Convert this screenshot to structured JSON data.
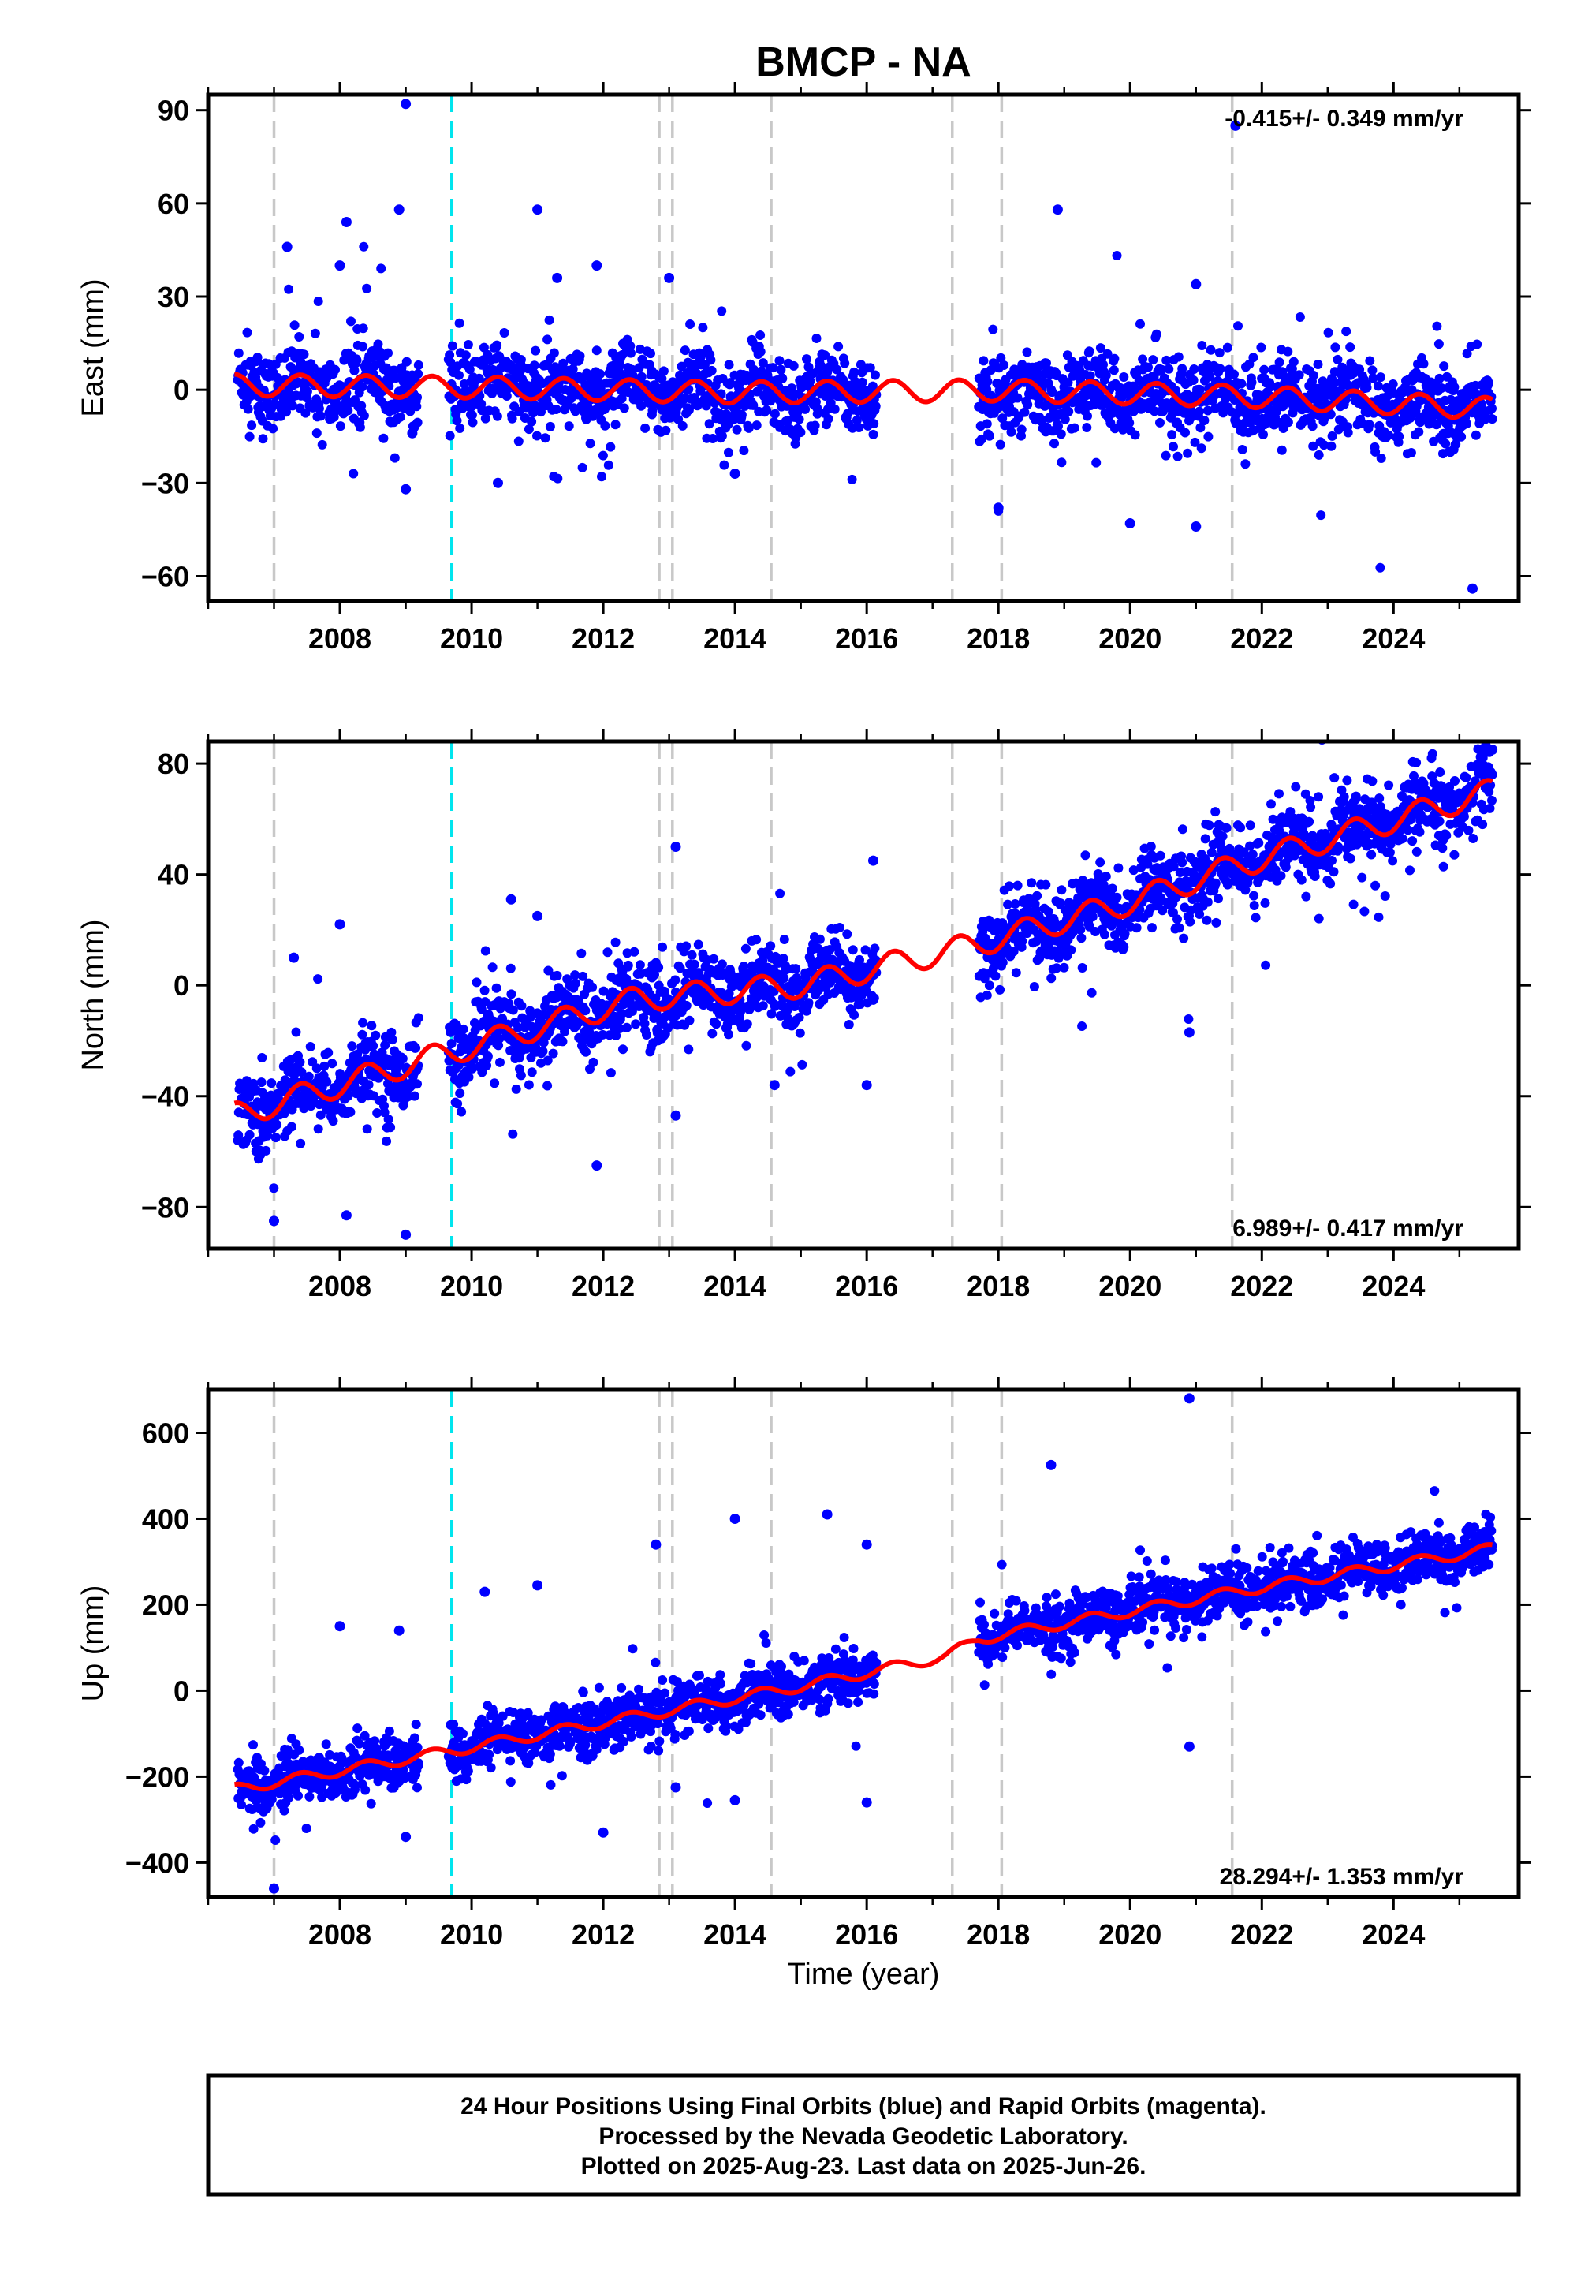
{
  "title": "BMCP - NA",
  "xlabel": "Time (year)",
  "caption": {
    "line1": "24 Hour Positions Using Final Orbits (blue) and Rapid Orbits (magenta).",
    "line2": "Processed by the Nevada Geodetic Laboratory.",
    "line3": "Plotted on 2025-Aug-23. Last data on 2025-Jun-26."
  },
  "colors": {
    "final_orbits": "#0000ff",
    "model": "#ff0000",
    "equipment_change": "#c8c8c8",
    "earthquake": "#00e5ee",
    "frame": "#000000"
  },
  "chart_data": [
    {
      "type": "scatter",
      "name": "east",
      "ylabel": "East (mm)",
      "rate": "-0.415+/- 0.349 mm/yr",
      "rate_position": "top-right",
      "xlim": [
        2006.0,
        2025.9
      ],
      "ylim": [
        -68,
        95
      ],
      "x_ticks": [
        2008,
        2010,
        2012,
        2014,
        2016,
        2018,
        2020,
        2022,
        2024
      ],
      "y_ticks": [
        -60,
        -30,
        0,
        30,
        60,
        90
      ],
      "grid": false,
      "trend": [
        [
          2006.4,
          1.5
        ],
        [
          2010.0,
          0.8
        ],
        [
          2014.0,
          -0.9
        ],
        [
          2018.0,
          -0.2
        ],
        [
          2021.6,
          -2.0
        ],
        [
          2025.5,
          -6.0
        ]
      ],
      "seasonal_amplitude": 3.5,
      "scatter_sd": 4.5,
      "data_spans": [
        [
          2006.45,
          2009.2
        ],
        [
          2009.65,
          2016.15
        ],
        [
          2017.7,
          2025.5
        ]
      ],
      "outliers": [
        [
          2009.0,
          92
        ],
        [
          2008.9,
          58
        ],
        [
          2018.9,
          58
        ],
        [
          2011.0,
          58
        ],
        [
          2007.2,
          46
        ],
        [
          2021.6,
          85
        ],
        [
          2008.1,
          54
        ],
        [
          2021.0,
          34
        ],
        [
          2008.0,
          40
        ],
        [
          2011.9,
          40
        ],
        [
          2009.1,
          -14
        ],
        [
          2009.0,
          -32
        ],
        [
          2018.0,
          -38
        ],
        [
          2020.0,
          -43
        ],
        [
          2021.0,
          -44
        ],
        [
          2025.2,
          -64
        ],
        [
          2010.4,
          -30
        ],
        [
          2014.0,
          -27
        ],
        [
          2013.0,
          36
        ],
        [
          2011.3,
          36
        ]
      ]
    },
    {
      "type": "scatter",
      "name": "north",
      "ylabel": "North (mm)",
      "rate": "6.989+/- 0.417 mm/yr",
      "rate_position": "bottom-right",
      "xlim": [
        2006.0,
        2025.9
      ],
      "ylim": [
        -95,
        88
      ],
      "x_ticks": [
        2008,
        2010,
        2012,
        2014,
        2016,
        2018,
        2020,
        2022,
        2024
      ],
      "y_ticks": [
        -80,
        -40,
        0,
        40,
        80
      ],
      "grid": false,
      "trend": [
        [
          2006.4,
          -47
        ],
        [
          2009.7,
          -24
        ],
        [
          2012.5,
          -5
        ],
        [
          2015.0,
          0
        ],
        [
          2017.7,
          15
        ],
        [
          2020.0,
          30
        ],
        [
          2021.6,
          43
        ],
        [
          2025.5,
          70
        ]
      ],
      "seasonal_amplitude": 4.5,
      "scatter_sd": 5,
      "data_spans": [
        [
          2006.45,
          2009.2
        ],
        [
          2009.65,
          2016.15
        ],
        [
          2017.7,
          2025.5
        ]
      ],
      "outliers": [
        [
          2007.0,
          -85
        ],
        [
          2008.1,
          -83
        ],
        [
          2009.0,
          -90
        ],
        [
          2007.3,
          10
        ],
        [
          2008.0,
          22
        ],
        [
          2011.9,
          -65
        ],
        [
          2013.1,
          50
        ],
        [
          2016.1,
          45
        ],
        [
          2020.9,
          -17
        ],
        [
          2016.0,
          -36
        ],
        [
          2013.1,
          -47
        ],
        [
          2014.6,
          -36
        ],
        [
          2010.6,
          31
        ],
        [
          2011.0,
          25
        ],
        [
          2025.5,
          85
        ]
      ]
    },
    {
      "type": "scatter",
      "name": "up",
      "ylabel": "Up (mm)",
      "rate": "28.294+/- 1.353 mm/yr",
      "rate_position": "bottom-right",
      "xlim": [
        2006.0,
        2025.9
      ],
      "ylim": [
        -480,
        700
      ],
      "x_ticks": [
        2008,
        2010,
        2012,
        2014,
        2016,
        2018,
        2020,
        2022,
        2024
      ],
      "y_ticks": [
        -400,
        -200,
        0,
        200,
        400,
        600
      ],
      "grid": false,
      "trend": [
        [
          2006.4,
          -230
        ],
        [
          2009.7,
          -140
        ],
        [
          2012.5,
          -60
        ],
        [
          2015.0,
          10
        ],
        [
          2017.2,
          80
        ],
        [
          2017.7,
          120
        ],
        [
          2021.6,
          230
        ],
        [
          2025.5,
          330
        ]
      ],
      "seasonal_amplitude": 12,
      "scatter_sd": 22,
      "data_spans": [
        [
          2006.45,
          2009.2
        ],
        [
          2009.65,
          2016.15
        ],
        [
          2017.7,
          2025.5
        ]
      ],
      "outliers": [
        [
          2007.0,
          -460
        ],
        [
          2020.9,
          680
        ],
        [
          2018.8,
          525
        ],
        [
          2014.0,
          400
        ],
        [
          2015.4,
          410
        ],
        [
          2012.8,
          340
        ],
        [
          2016.0,
          340
        ],
        [
          2010.2,
          230
        ],
        [
          2011.0,
          245
        ],
        [
          2008.9,
          140
        ],
        [
          2008.0,
          150
        ],
        [
          2020.9,
          -130
        ],
        [
          2016.0,
          -260
        ],
        [
          2013.1,
          -225
        ],
        [
          2014.0,
          -255
        ],
        [
          2012.0,
          -330
        ],
        [
          2009.0,
          -340
        ]
      ]
    }
  ],
  "event_lines": [
    {
      "year": 2007.0,
      "kind": "equipment_change"
    },
    {
      "year": 2009.7,
      "kind": "earthquake"
    },
    {
      "year": 2012.85,
      "kind": "equipment_change"
    },
    {
      "year": 2013.05,
      "kind": "equipment_change"
    },
    {
      "year": 2014.55,
      "kind": "equipment_change"
    },
    {
      "year": 2017.3,
      "kind": "equipment_change"
    },
    {
      "year": 2018.05,
      "kind": "equipment_change"
    },
    {
      "year": 2021.55,
      "kind": "equipment_change"
    }
  ]
}
